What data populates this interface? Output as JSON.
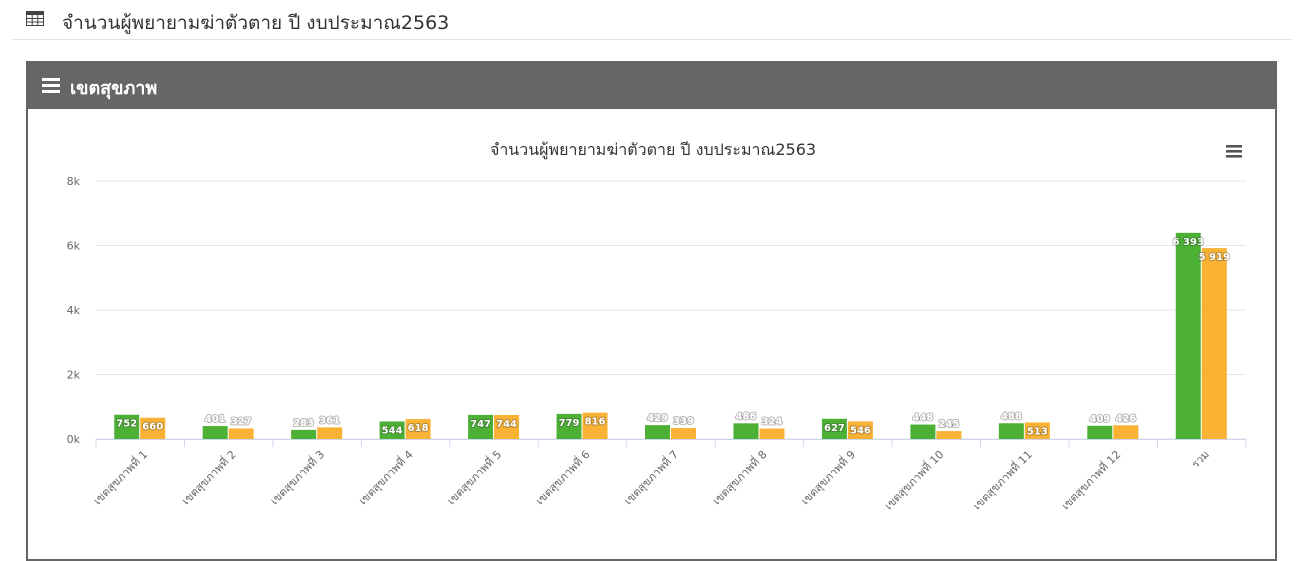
{
  "page": {
    "title": "จำนวนผู้พยายามฆ่าตัวตาย ปี งบประมาณ2563",
    "icon": "table-icon"
  },
  "panel": {
    "heading": "เขตสุขภาพ",
    "icon": "menu-icon",
    "color": "#666666"
  },
  "chart_data": {
    "type": "bar",
    "title": "จำนวนผู้พยายามฆ่าตัวตาย ปี งบประมาณ2563",
    "xlabel": "",
    "ylabel": "",
    "categories": [
      "เขตสุขภาพที่ 1",
      "เขตสุขภาพที่ 2",
      "เขตสุขภาพที่ 3",
      "เขตสุขภาพที่ 4",
      "เขตสุขภาพที่ 5",
      "เขตสุขภาพที่ 6",
      "เขตสุขภาพที่ 7",
      "เขตสุขภาพที่ 8",
      "เขตสุขภาพที่ 9",
      "เขตสุขภาพที่ 10",
      "เขตสุขภาพที่ 11",
      "เขตสุขภาพที่ 12",
      "รวม"
    ],
    "series": [
      {
        "color": "#4cb034",
        "values": [
          752,
          401,
          283,
          544,
          747,
          779,
          429,
          486,
          627,
          448,
          488,
          409,
          6393
        ],
        "labels": [
          "752",
          "401",
          "283",
          "544",
          "747",
          "779",
          "429",
          "486",
          "627",
          "448",
          "488",
          "409",
          "6 393"
        ]
      },
      {
        "color": "#f9b233",
        "values": [
          660,
          327,
          361,
          618,
          744,
          816,
          339,
          324,
          546,
          245,
          513,
          426,
          5919
        ],
        "labels": [
          "660",
          "327",
          "361",
          "618",
          "744",
          "816",
          "339",
          "324",
          "546",
          "245",
          "513",
          "426",
          "5 919"
        ]
      }
    ],
    "yticks": [
      "0k",
      "2k",
      "4k",
      "6k",
      "8k"
    ],
    "ylim": [
      0,
      8000
    ],
    "grid": true,
    "legend": "none",
    "menu_icon": "hamburger-menu-icon"
  }
}
